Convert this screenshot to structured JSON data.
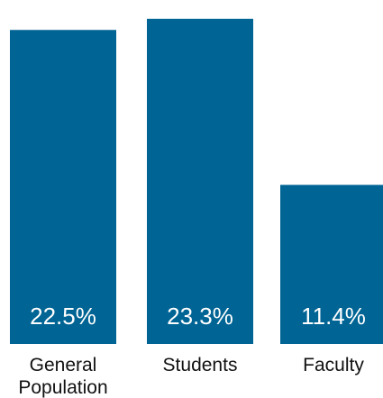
{
  "chart_data": {
    "type": "bar",
    "categories": [
      "General Population",
      "Students",
      "Faculty"
    ],
    "category_lines": [
      [
        "General",
        "Population"
      ],
      [
        "Students"
      ],
      [
        "Faculty"
      ]
    ],
    "values": [
      22.5,
      23.3,
      11.4
    ],
    "value_labels": [
      "22.5%",
      "23.3%",
      "11.4%"
    ],
    "title": "",
    "xlabel": "",
    "ylabel": "",
    "ylim": [
      0,
      24
    ],
    "grid": false,
    "legend": "none",
    "bar_color": "#006494"
  }
}
